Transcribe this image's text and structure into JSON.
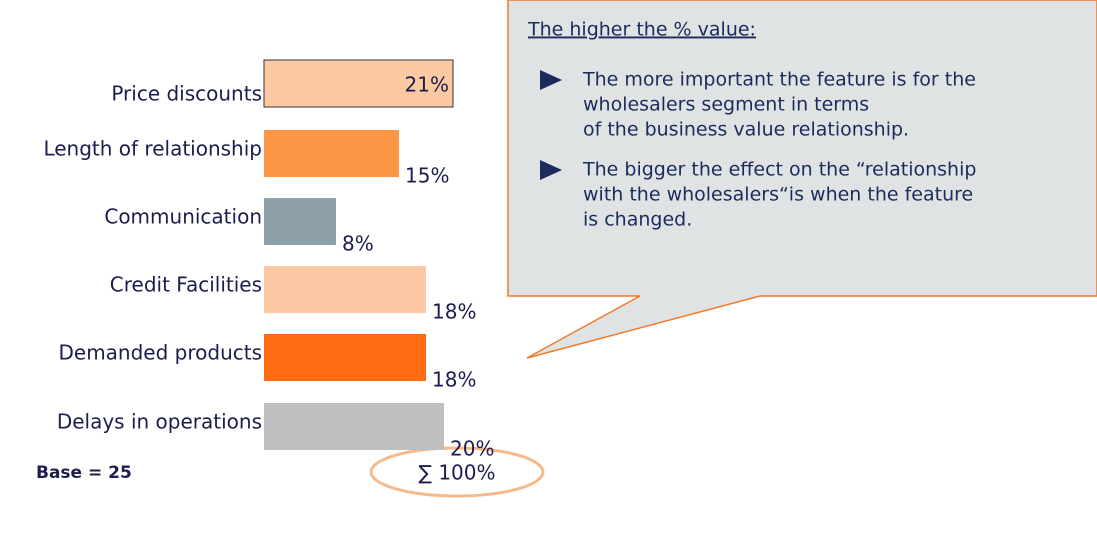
{
  "chart_data": {
    "type": "bar",
    "orientation": "horizontal",
    "categories": [
      "Price discounts",
      "Length of relationship",
      "Communication",
      "Credit Facilities",
      "Demanded products",
      "Delays in operations"
    ],
    "values": [
      21,
      15,
      8,
      18,
      18,
      20
    ],
    "value_labels": [
      "21%",
      "15%",
      "8%",
      "18%",
      "18%",
      "20%"
    ],
    "colors": [
      "#fdc9a2",
      "#fd9644",
      "#8ea0aa",
      "#fdc9a4",
      "#ff6b12",
      "#bfbfbf"
    ],
    "base_note": "Base = 25",
    "sum_note": "∑ 100%",
    "callout": {
      "heading": "The higher the % value:",
      "bullets": [
        [
          "The more important the feature is for the",
          "wholesalers segment in terms",
          "of the business value relationship."
        ],
        [
          "The bigger the effect on the “relationship",
          "with the wholesalers“is when the feature",
          "is changed."
        ]
      ]
    }
  }
}
